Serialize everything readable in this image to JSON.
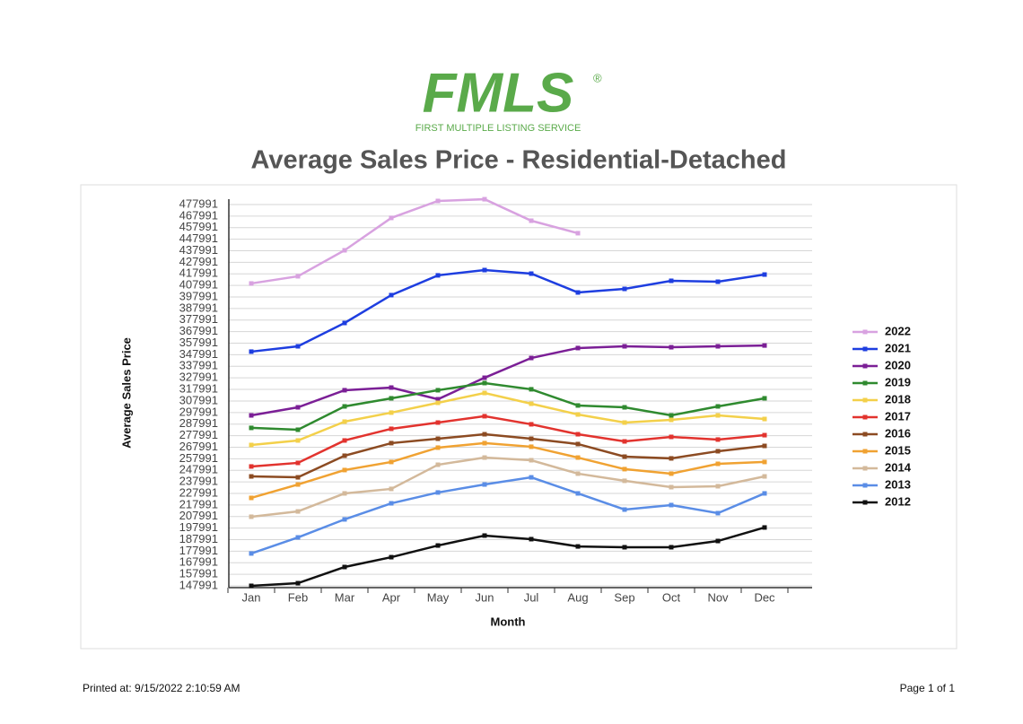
{
  "logo": {
    "name": "FMLS",
    "mark": "®",
    "tagline": "FIRST MULTIPLE LISTING SERVICE"
  },
  "footer": {
    "printed": "Printed at:  9/15/2022 2:10:59 AM",
    "page": "Page 1 of 1"
  },
  "chart_data": {
    "type": "line",
    "title": "Average Sales Price - Residential-Detached",
    "x_label": "Month",
    "y_label": "Average Sales Price",
    "categories": [
      "Jan",
      "Feb",
      "Mar",
      "Apr",
      "May",
      "Jun",
      "Jul",
      "Aug",
      "Sep",
      "Oct",
      "Nov",
      "Dec"
    ],
    "ylim": [
      147991,
      477991
    ],
    "yticks": [
      147991,
      157991,
      167991,
      177991,
      187991,
      197991,
      207991,
      217991,
      227991,
      237991,
      247991,
      257991,
      267991,
      277991,
      287991,
      297991,
      307991,
      317991,
      327991,
      337991,
      347991,
      357991,
      367991,
      377991,
      387991,
      397991,
      407991,
      417991,
      427991,
      437991,
      447991,
      457991,
      467991,
      477991
    ],
    "grid": true,
    "legend": "right",
    "series": [
      {
        "name": "2022",
        "color": "#d8a2e0",
        "values": [
          409700,
          415900,
          438400,
          466400,
          481100,
          482600,
          464000,
          453200,
          null,
          null,
          null,
          null
        ]
      },
      {
        "name": "2021",
        "color": "#1e3ee0",
        "values": [
          350700,
          355300,
          375500,
          399600,
          416700,
          421300,
          418200,
          401900,
          405000,
          412000,
          411200,
          417400
        ]
      },
      {
        "name": "2020",
        "color": "#7b1f96",
        "values": [
          295500,
          302500,
          317300,
          319600,
          309500,
          328100,
          345200,
          353800,
          355300,
          354500,
          355300,
          356000
        ]
      },
      {
        "name": "2019",
        "color": "#2f8a2f",
        "values": [
          284700,
          283100,
          303300,
          310300,
          317300,
          323500,
          318100,
          304100,
          302500,
          295500,
          303300,
          310300
        ]
      },
      {
        "name": "2018",
        "color": "#f3d04a",
        "values": [
          269900,
          273800,
          290100,
          297900,
          306400,
          314900,
          305600,
          296300,
          289300,
          291600,
          295500,
          292400
        ]
      },
      {
        "name": "2017",
        "color": "#e2332e",
        "values": [
          251300,
          254400,
          273800,
          283900,
          289300,
          294800,
          287800,
          279200,
          273000,
          276900,
          274600,
          278400
        ]
      },
      {
        "name": "2016",
        "color": "#8c4b22",
        "values": [
          242700,
          241900,
          260600,
          271500,
          275300,
          279200,
          275300,
          270700,
          259800,
          258300,
          264500,
          269100
        ]
      },
      {
        "name": "2015",
        "color": "#f0a232",
        "values": [
          224100,
          235700,
          248200,
          255200,
          267600,
          271500,
          268400,
          259000,
          249000,
          245100,
          253600,
          255200
        ]
      },
      {
        "name": "2014",
        "color": "#d3b99b",
        "values": [
          207800,
          212400,
          228000,
          231900,
          252800,
          259000,
          256700,
          245100,
          238900,
          233400,
          234200,
          242700
        ]
      },
      {
        "name": "2013",
        "color": "#5a8de6",
        "values": [
          176000,
          189900,
          205500,
          219400,
          228800,
          235700,
          241900,
          228000,
          214000,
          217900,
          210900,
          228000
        ]
      },
      {
        "name": "2012",
        "color": "#111111",
        "values": [
          148000,
          150300,
          164300,
          172800,
          182900,
          191500,
          188400,
          182100,
          181400,
          181400,
          186800,
          198500
        ]
      }
    ]
  }
}
